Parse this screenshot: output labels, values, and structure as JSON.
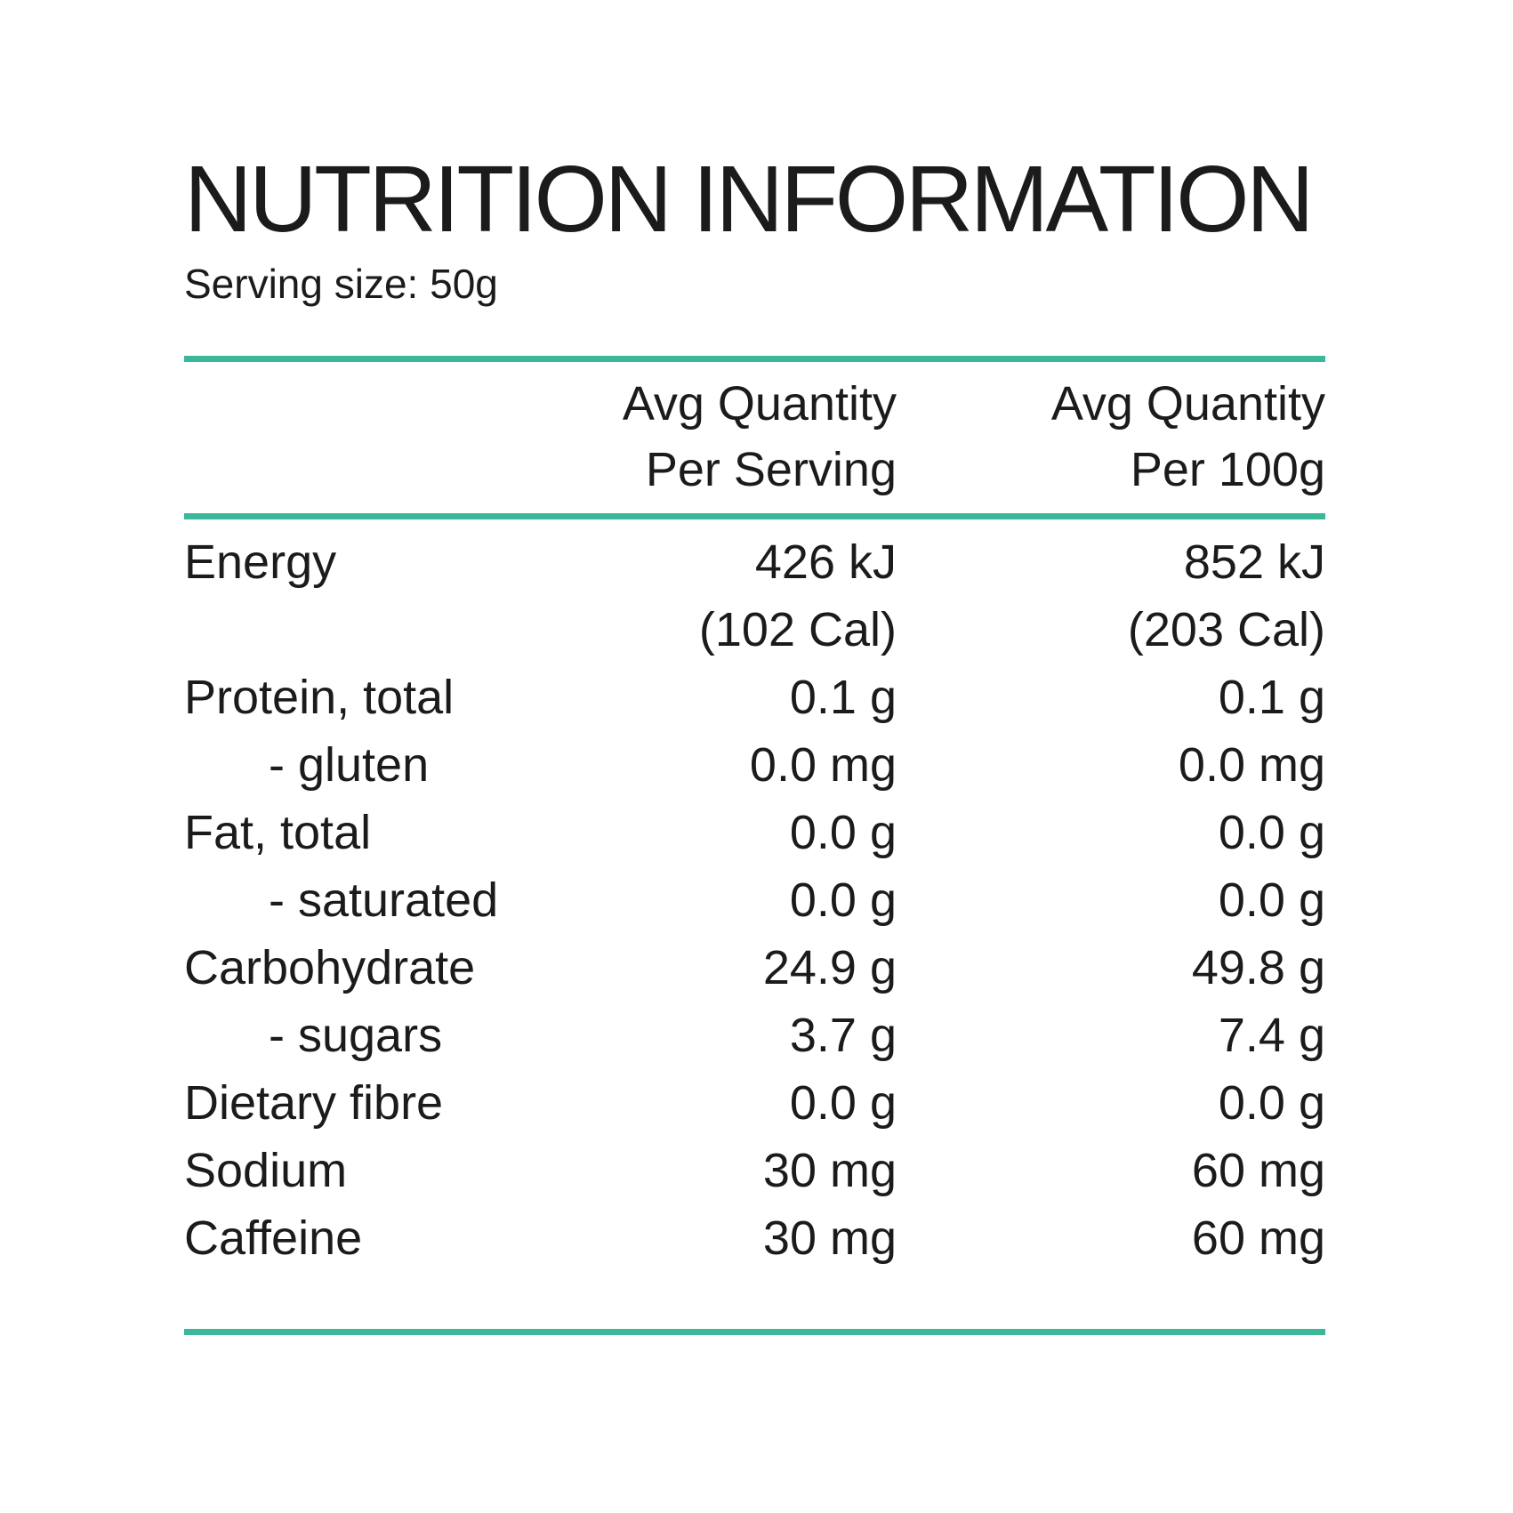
{
  "label": {
    "title": "NUTRITION INFORMATION",
    "serving_size": "Serving size: 50g",
    "columns": [
      {
        "line1": "Avg Quantity",
        "line2": "Per Serving"
      },
      {
        "line1": "Avg Quantity",
        "line2": "Per 100g"
      }
    ],
    "rows": [
      {
        "label": "Energy",
        "indent": false,
        "per_serving": "426 kJ",
        "per_100g": "852 kJ"
      },
      {
        "label": "",
        "indent": false,
        "per_serving": "(102 Cal)",
        "per_100g": "(203 Cal)"
      },
      {
        "label": "Protein, total",
        "indent": false,
        "per_serving": "0.1 g",
        "per_100g": "0.1 g"
      },
      {
        "label": "- gluten",
        "indent": true,
        "per_serving": "0.0 mg",
        "per_100g": "0.0 mg"
      },
      {
        "label": "Fat, total",
        "indent": false,
        "per_serving": "0.0 g",
        "per_100g": "0.0 g"
      },
      {
        "label": "- saturated",
        "indent": true,
        "per_serving": "0.0 g",
        "per_100g": "0.0 g"
      },
      {
        "label": "Carbohydrate",
        "indent": false,
        "per_serving": "24.9 g",
        "per_100g": "49.8 g"
      },
      {
        "label": "- sugars",
        "indent": true,
        "per_serving": "3.7 g",
        "per_100g": "7.4 g"
      },
      {
        "label": "Dietary fibre",
        "indent": false,
        "per_serving": "0.0 g",
        "per_100g": "0.0 g"
      },
      {
        "label": "Sodium",
        "indent": false,
        "per_serving": "30 mg",
        "per_100g": "60 mg"
      },
      {
        "label": "Caffeine",
        "indent": false,
        "per_serving": "30 mg",
        "per_100g": "60 mg"
      }
    ]
  },
  "colors": {
    "accent": "#3cb79a",
    "text": "#1b1b1b",
    "background": "#ffffff"
  }
}
